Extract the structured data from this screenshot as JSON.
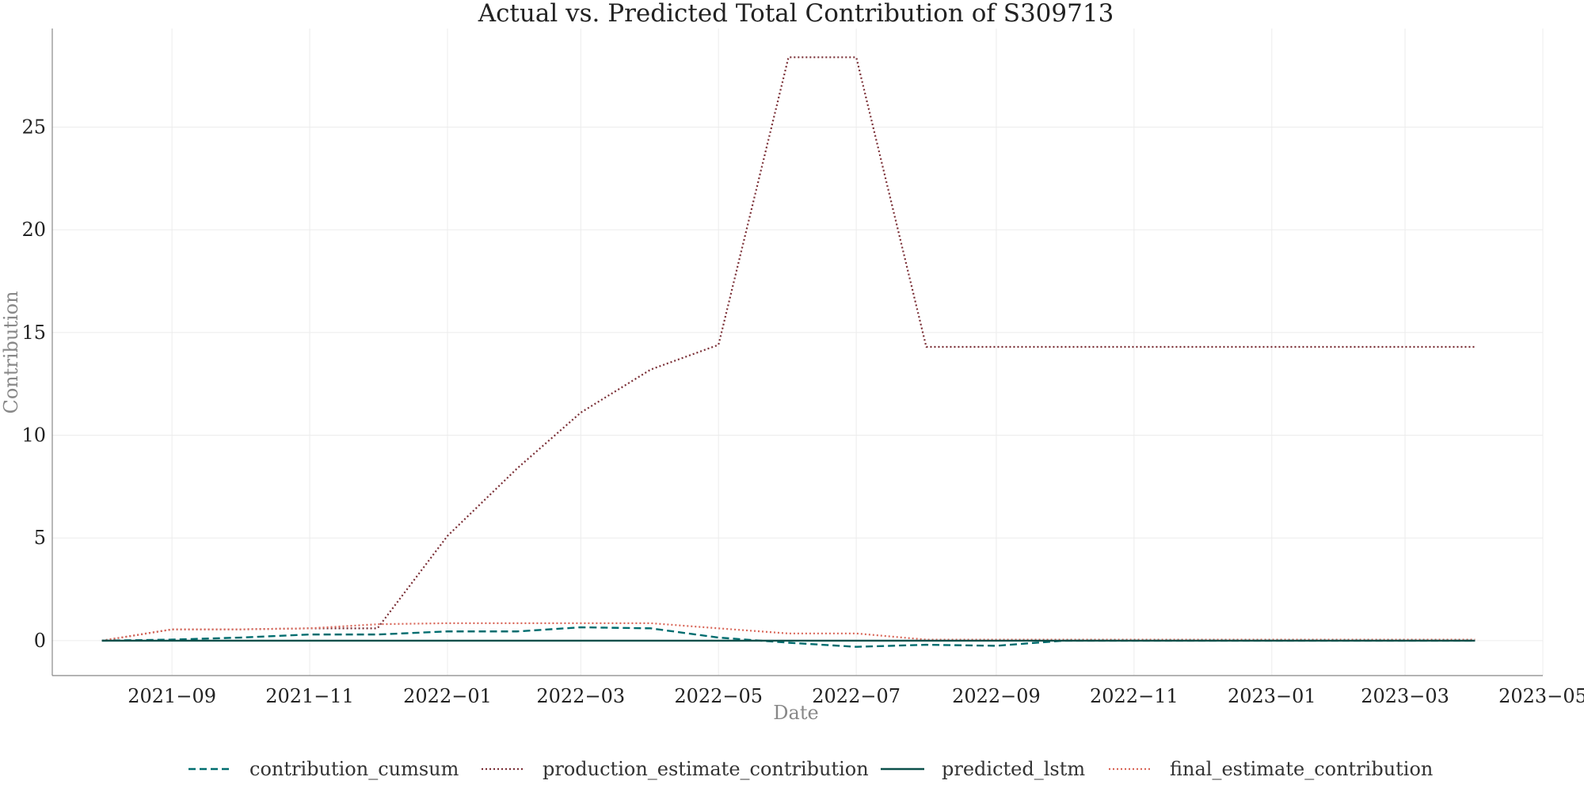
{
  "chart_data": {
    "type": "line",
    "title": "Actual vs. Predicted Total Contribution of S309713",
    "xlabel": "Date",
    "ylabel": "Contribution",
    "xlim": [
      "2021-07-10",
      "2023-05-01"
    ],
    "ylim": [
      -1.7,
      29.8
    ],
    "grid": true,
    "legend_position": "bottom",
    "x_ticks": [
      "2021-09",
      "2021-11",
      "2022-01",
      "2022-03",
      "2022-05",
      "2022-07",
      "2022-09",
      "2022-11",
      "2023-01",
      "2023-03",
      "2023-05"
    ],
    "y_ticks": [
      0,
      5,
      10,
      15,
      20,
      25
    ],
    "x": [
      "2021-08-01",
      "2021-09-01",
      "2021-10-01",
      "2021-11-01",
      "2021-12-01",
      "2022-01-01",
      "2022-02-01",
      "2022-03-01",
      "2022-04-01",
      "2022-05-01",
      "2022-06-01",
      "2022-07-01",
      "2022-08-01",
      "2022-09-01",
      "2022-10-01",
      "2022-11-01",
      "2022-12-01",
      "2023-01-01",
      "2023-02-01",
      "2023-03-01",
      "2023-04-01"
    ],
    "series": [
      {
        "name": "contribution_cumsum",
        "color": "#006d6f",
        "style": "dashed",
        "values": [
          0.0,
          0.05,
          0.15,
          0.3,
          0.3,
          0.45,
          0.45,
          0.65,
          0.6,
          0.15,
          -0.1,
          -0.3,
          -0.2,
          -0.25,
          0.0,
          0.0,
          0.0,
          0.0,
          0.0,
          0.0,
          0.0
        ]
      },
      {
        "name": "production_estimate_contribution",
        "color": "#7a2e35",
        "style": "dotted",
        "values": [
          0.0,
          0.55,
          0.55,
          0.6,
          0.6,
          5.1,
          8.4,
          11.1,
          13.2,
          14.4,
          28.4,
          28.4,
          14.3,
          14.3,
          14.3,
          14.3,
          14.3,
          14.3,
          14.3,
          14.3,
          14.3
        ]
      },
      {
        "name": "predicted_lstm",
        "color": "#0b4f4a",
        "style": "solid",
        "values": [
          0.0,
          0.0,
          0.0,
          0.0,
          0.0,
          0.0,
          0.0,
          0.0,
          0.0,
          0.0,
          0.0,
          0.0,
          0.0,
          0.0,
          0.0,
          0.0,
          0.0,
          0.0,
          0.0,
          0.0,
          0.0
        ]
      },
      {
        "name": "final_estimate_contribution",
        "color": "#d9685a",
        "style": "dotted",
        "values": [
          0.0,
          0.55,
          0.55,
          0.6,
          0.8,
          0.85,
          0.85,
          0.85,
          0.85,
          0.6,
          0.35,
          0.35,
          0.05,
          0.05,
          0.05,
          0.05,
          0.05,
          0.05,
          0.05,
          0.05,
          0.05
        ]
      }
    ]
  }
}
